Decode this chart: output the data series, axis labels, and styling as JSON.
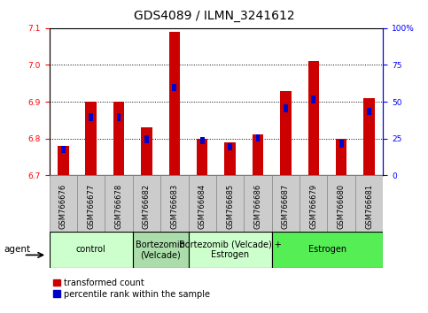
{
  "title": "GDS4089 / ILMN_3241612",
  "samples": [
    "GSM766676",
    "GSM766677",
    "GSM766678",
    "GSM766682",
    "GSM766683",
    "GSM766684",
    "GSM766685",
    "GSM766686",
    "GSM766687",
    "GSM766679",
    "GSM766680",
    "GSM766681"
  ],
  "red_values": [
    6.78,
    6.9,
    6.9,
    6.83,
    7.09,
    6.8,
    6.79,
    6.81,
    6.93,
    7.01,
    6.8,
    6.91
  ],
  "blue_values": [
    20,
    42,
    42,
    27,
    62,
    26,
    22,
    28,
    48,
    54,
    24,
    46
  ],
  "ylim_left": [
    6.7,
    7.1
  ],
  "ylim_right": [
    0,
    100
  ],
  "yticks_left": [
    6.7,
    6.8,
    6.9,
    7.0,
    7.1
  ],
  "yticks_right": [
    0,
    25,
    50,
    75,
    100
  ],
  "ytick_labels_right": [
    "0",
    "25",
    "50",
    "75",
    "100%"
  ],
  "group_configs": [
    {
      "label": "control",
      "indices": [
        0,
        1,
        2
      ],
      "color": "#ccffcc"
    },
    {
      "label": "Bortezomib\n(Velcade)",
      "indices": [
        3,
        4
      ],
      "color": "#aaddaa"
    },
    {
      "label": "Bortezomib (Velcade) +\nEstrogen",
      "indices": [
        5,
        6,
        7
      ],
      "color": "#ccffcc"
    },
    {
      "label": "Estrogen",
      "indices": [
        8,
        9,
        10,
        11
      ],
      "color": "#55ee55"
    }
  ],
  "bar_width": 0.4,
  "blue_bar_width": 0.15,
  "red_color": "#cc0000",
  "blue_color": "#0000cc",
  "baseline": 6.7,
  "legend_red": "transformed count",
  "legend_blue": "percentile rank within the sample",
  "agent_label": "agent",
  "title_fontsize": 10,
  "tick_fontsize": 6.5,
  "group_fontsize": 7,
  "sample_fontsize": 6,
  "tickbox_color": "#cccccc"
}
